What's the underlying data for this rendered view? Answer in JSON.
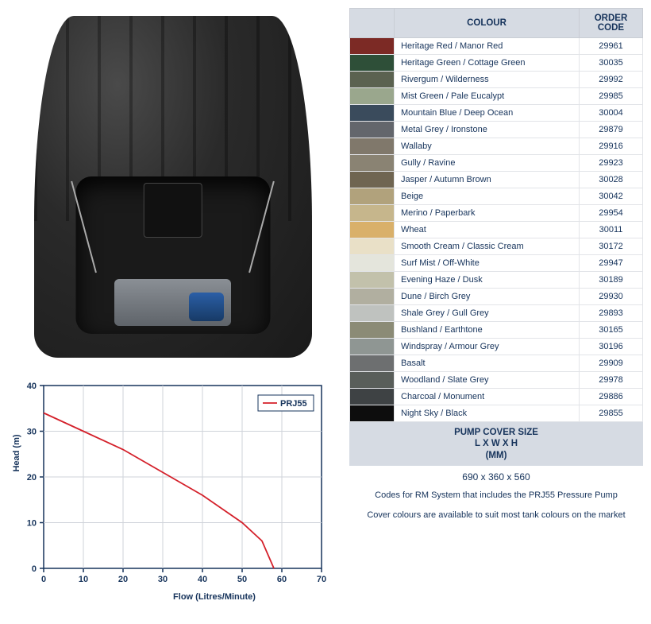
{
  "table": {
    "headers": {
      "colour": "COLOUR",
      "code": "ORDER CODE"
    },
    "rows": [
      {
        "swatch": "#7c2a25",
        "name": "Heritage Red / Manor Red",
        "code": "29961"
      },
      {
        "swatch": "#2e4f38",
        "name": "Heritage Green / Cottage Green",
        "code": "30035"
      },
      {
        "swatch": "#5b6250",
        "name": "Rivergum / Wilderness",
        "code": "29992"
      },
      {
        "swatch": "#9aa78d",
        "name": "Mist Green / Pale Eucalypt",
        "code": "29985"
      },
      {
        "swatch": "#3a4b5c",
        "name": "Mountain Blue / Deep Ocean",
        "code": "30004"
      },
      {
        "swatch": "#63666c",
        "name": "Metal Grey / Ironstone",
        "code": "29879"
      },
      {
        "swatch": "#80786b",
        "name": "Wallaby",
        "code": "29916"
      },
      {
        "swatch": "#8a8373",
        "name": "Gully / Ravine",
        "code": "29923"
      },
      {
        "swatch": "#6f6551",
        "name": "Jasper / Autumn Brown",
        "code": "30028"
      },
      {
        "swatch": "#b1a27c",
        "name": "Beige",
        "code": "30042"
      },
      {
        "swatch": "#c6b68c",
        "name": "Merino / Paperbark",
        "code": "29954"
      },
      {
        "swatch": "#d9b06a",
        "name": "Wheat",
        "code": "30011"
      },
      {
        "swatch": "#e9e0c7",
        "name": "Smooth Cream / Classic Cream",
        "code": "30172"
      },
      {
        "swatch": "#e4e5dc",
        "name": "Surf Mist / Off-White",
        "code": "29947"
      },
      {
        "swatch": "#c2c1ab",
        "name": "Evening Haze / Dusk",
        "code": "30189"
      },
      {
        "swatch": "#b1afa0",
        "name": "Dune / Birch Grey",
        "code": "29930"
      },
      {
        "swatch": "#bfc2bf",
        "name": "Shale Grey / Gull Grey",
        "code": "29893"
      },
      {
        "swatch": "#8b8b76",
        "name": "Bushland / Earthtone",
        "code": "30165"
      },
      {
        "swatch": "#8f9693",
        "name": "Windspray / Armour Grey",
        "code": "30196"
      },
      {
        "swatch": "#6d6f70",
        "name": "Basalt",
        "code": "29909"
      },
      {
        "swatch": "#595e5a",
        "name": "Woodland / Slate Grey",
        "code": "29978"
      },
      {
        "swatch": "#3e4244",
        "name": "Charcoal / Monument",
        "code": "29886"
      },
      {
        "swatch": "#0d0d0d",
        "name": "Night Sky / Black",
        "code": "29855"
      }
    ]
  },
  "size": {
    "heading_l1": "PUMP COVER SIZE",
    "heading_l2": "L X W X H",
    "heading_l3": "(MM)",
    "value": "690 x 360 x 560"
  },
  "notes": {
    "line1": "Codes for RM System that includes the PRJ55 Pressure Pump",
    "line2": "Cover colours are available to suit most tank colours on the market"
  },
  "chart": {
    "type": "line",
    "series_name": "PRJ55",
    "series_color": "#d4202a",
    "axis_color": "#16335b",
    "grid_color": "#cfd3da",
    "background": "#ffffff",
    "xlabel": "Flow (Litres/Minute)",
    "ylabel": "Head (m)",
    "xlim": [
      0,
      70
    ],
    "ylim": [
      0,
      40
    ],
    "xtick_step": 10,
    "ytick_step": 10,
    "label_fontsize": 11,
    "line_width": 1.8,
    "points": [
      {
        "x": 0,
        "y": 34
      },
      {
        "x": 10,
        "y": 30
      },
      {
        "x": 20,
        "y": 26
      },
      {
        "x": 30,
        "y": 21
      },
      {
        "x": 40,
        "y": 16
      },
      {
        "x": 50,
        "y": 10
      },
      {
        "x": 55,
        "y": 6
      },
      {
        "x": 58,
        "y": 0
      }
    ]
  }
}
